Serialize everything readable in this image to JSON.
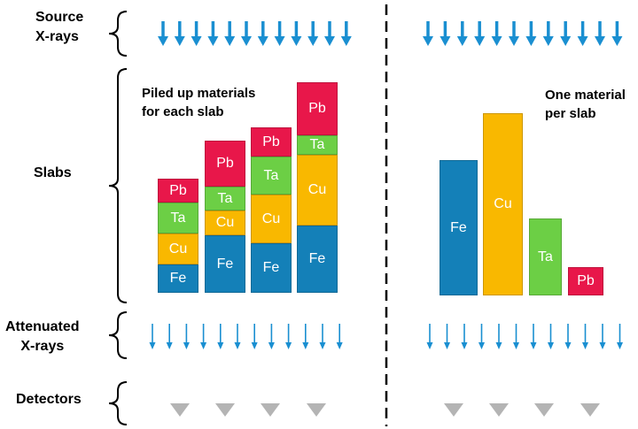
{
  "labels": {
    "source": "Source\nX-rays",
    "slabs": "Slabs",
    "attenuated": "Attenuated\nX-rays",
    "detectors": "Detectors"
  },
  "annotations": {
    "left": "Piled up materials\nfor each slab",
    "right": "One material\nper slab"
  },
  "materials": {
    "Pb": {
      "label": "Pb",
      "color": "#e8174a"
    },
    "Ta": {
      "label": "Ta",
      "color": "#6ccf45"
    },
    "Cu": {
      "label": "Cu",
      "color": "#f9b800"
    },
    "Fe": {
      "label": "Fe",
      "color": "#1480b8"
    }
  },
  "left_slabs": [
    {
      "stack": [
        {
          "m": "Pb",
          "t": 27
        },
        {
          "m": "Ta",
          "t": 35
        },
        {
          "m": "Cu",
          "t": 35
        },
        {
          "m": "Fe",
          "t": 32
        }
      ]
    },
    {
      "stack": [
        {
          "m": "Pb",
          "t": 52
        },
        {
          "m": "Ta",
          "t": 27
        },
        {
          "m": "Cu",
          "t": 28
        },
        {
          "m": "Fe",
          "t": 65
        }
      ]
    },
    {
      "stack": [
        {
          "m": "Pb",
          "t": 33
        },
        {
          "m": "Ta",
          "t": 43
        },
        {
          "m": "Cu",
          "t": 55
        },
        {
          "m": "Fe",
          "t": 56
        }
      ]
    },
    {
      "stack": [
        {
          "m": "Pb",
          "t": 60
        },
        {
          "m": "Ta",
          "t": 22
        },
        {
          "m": "Cu",
          "t": 80
        },
        {
          "m": "Fe",
          "t": 76
        }
      ]
    }
  ],
  "right_slabs": [
    {
      "m": "Fe",
      "t": 153
    },
    {
      "m": "Cu",
      "t": 206
    },
    {
      "m": "Ta",
      "t": 87
    },
    {
      "m": "Pb",
      "t": 32
    }
  ],
  "colors": {
    "arrow": "#1a8fd1",
    "detector": "#b4b4b4",
    "divider": "#000000"
  }
}
